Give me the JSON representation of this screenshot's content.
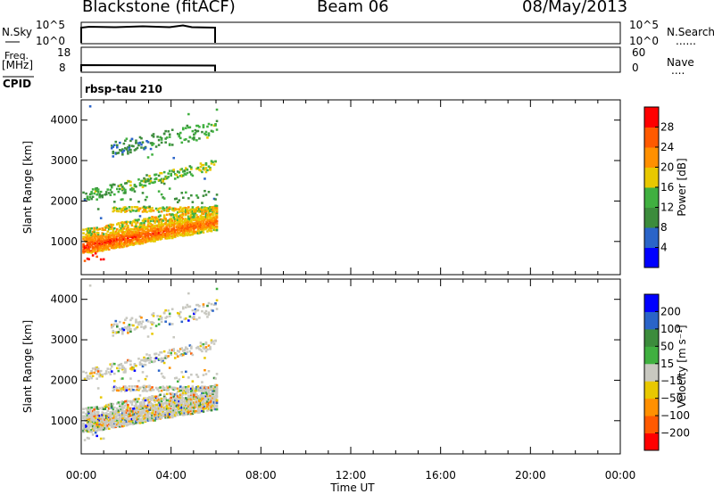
{
  "header": {
    "station": "Blackstone (fitACF)",
    "beam": "Beam 06",
    "date": "08/May/2013"
  },
  "panels": {
    "nsky_label": "N.Sky",
    "nsky_ticks": [
      "10^5",
      "10^0"
    ],
    "nsky_right_ticks": [
      "10^5",
      "10^0"
    ],
    "nsearch_label": "N.Search",
    "nsearch_dots": "......",
    "freq_label": "Freq.",
    "freq_unit": "[MHz]",
    "freq_ticks": [
      "18",
      "8"
    ],
    "nave_ticks": [
      "60",
      "0"
    ],
    "nave_label": "Nave",
    "nave_dots": "....",
    "cpid_label": "CPID",
    "cpid_value": "rbsp-tau 210"
  },
  "chart_data": [
    {
      "type": "heatmap",
      "name": "power",
      "ylabel": "Slant Range [km]",
      "yticks": [
        1000,
        2000,
        3000,
        4000
      ],
      "ylim": [
        180,
        4500
      ],
      "xlim": [
        0,
        24
      ],
      "xticks": [
        "00:00",
        "04:00",
        "08:00",
        "12:00",
        "16:00",
        "20:00",
        "00:00"
      ],
      "data_end_hour": 6,
      "colorbar": {
        "label": "Power [dB]",
        "ticks": [
          "4",
          "8",
          "12",
          "16",
          "20",
          "24",
          "28"
        ],
        "colors": [
          "#0000ff",
          "#2a64c8",
          "#3c8c3c",
          "#40b040",
          "#e8c800",
          "#ff9000",
          "#ff5a00",
          "#ff0000"
        ],
        "range": [
          0,
          32
        ]
      },
      "features": [
        {
          "range_start": 900,
          "range_end": 1500,
          "level_start": 29,
          "level_end": 25
        },
        {
          "range_start": 1750,
          "range_end": 1750,
          "level_start": 18,
          "level_end": 18
        },
        {
          "range_start": 2100,
          "range_end": 2900,
          "level_start": 12,
          "level_end": 16
        },
        {
          "range_start": 3100,
          "range_end": 3800,
          "level_start": 6,
          "level_end": 14
        }
      ]
    },
    {
      "type": "heatmap",
      "name": "velocity",
      "ylabel": "Slant Range [km]",
      "yticks": [
        1000,
        2000,
        3000,
        4000
      ],
      "ylim": [
        180,
        4500
      ],
      "xlim": [
        0,
        24
      ],
      "xticks": [
        "00:00",
        "04:00",
        "08:00",
        "12:00",
        "16:00",
        "20:00",
        "00:00"
      ],
      "xlabel": "Time UT",
      "colorbar": {
        "label": "Velocity [m s⁻¹]",
        "ticks": [
          "200",
          "100",
          "50",
          "15",
          "−15",
          "−50",
          "−100",
          "−200"
        ],
        "colors": [
          "#0000ff",
          "#2a64c8",
          "#3c8c3c",
          "#40b040",
          "#c8c8c0",
          "#e8c800",
          "#ff9000",
          "#ff5a00",
          "#ff0000"
        ]
      }
    }
  ]
}
